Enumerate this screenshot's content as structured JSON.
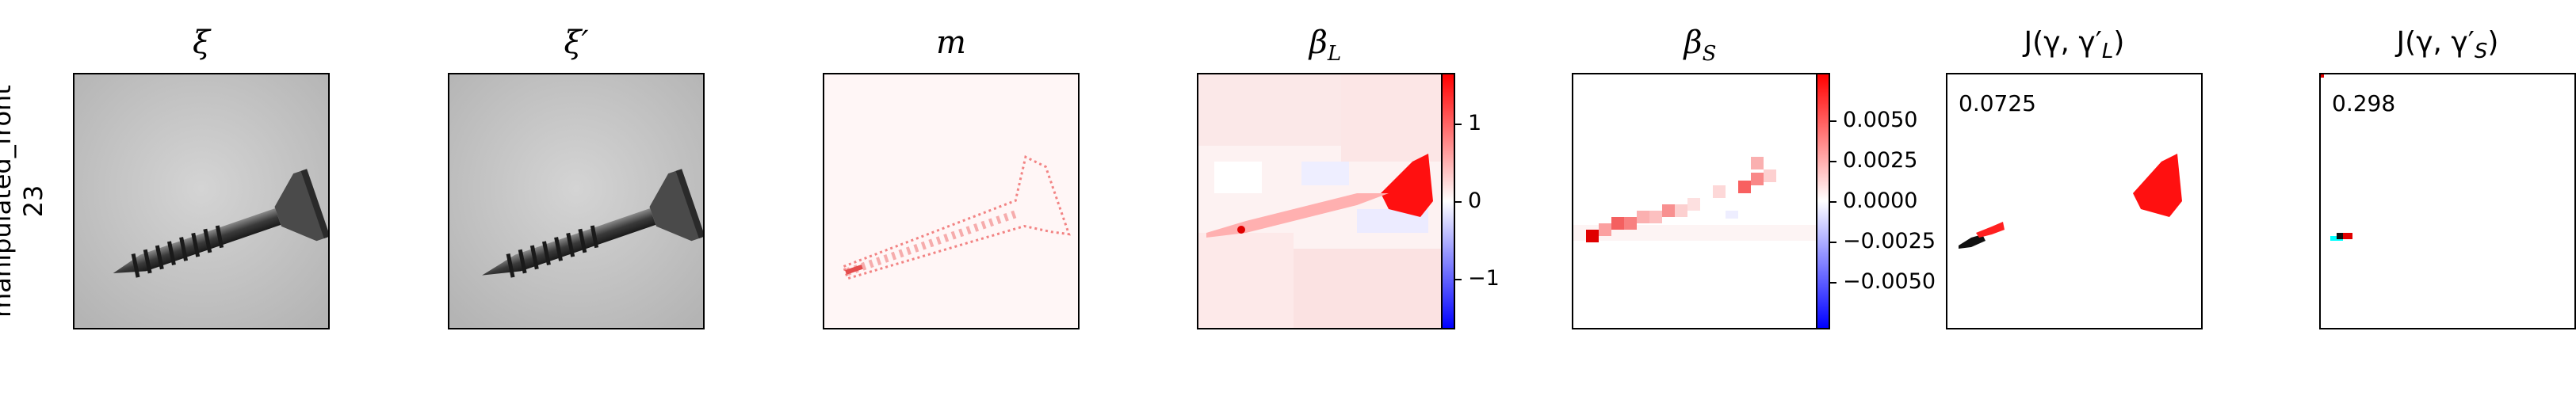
{
  "row_label": {
    "line1": "manipulated_front",
    "line2": "23"
  },
  "panels": [
    {
      "title_main": "ξ",
      "title_sub": ""
    },
    {
      "title_main": "ξ′",
      "title_sub": ""
    },
    {
      "title_main": "m",
      "title_sub": ""
    },
    {
      "title_main": "β",
      "title_sub": "L"
    },
    {
      "title_main": "β",
      "title_sub": "S"
    },
    {
      "title_main": "J(γ, γ′",
      "title_sub": "L",
      "title_end": ")"
    },
    {
      "title_main": "J(γ, γ′",
      "title_sub": "S",
      "title_end": ")"
    }
  ],
  "colorbar_L": {
    "ticks": [
      "1",
      "0",
      "−1"
    ]
  },
  "colorbar_S": {
    "ticks": [
      "0.0050",
      "0.0025",
      "0.0000",
      "−0.0025",
      "−0.0050"
    ]
  },
  "scores": {
    "J_L": "0.0725",
    "J_S": "0.298"
  },
  "colors": {
    "positive": "#ff0000",
    "negative": "#0000ff",
    "background": "#ffffff"
  }
}
